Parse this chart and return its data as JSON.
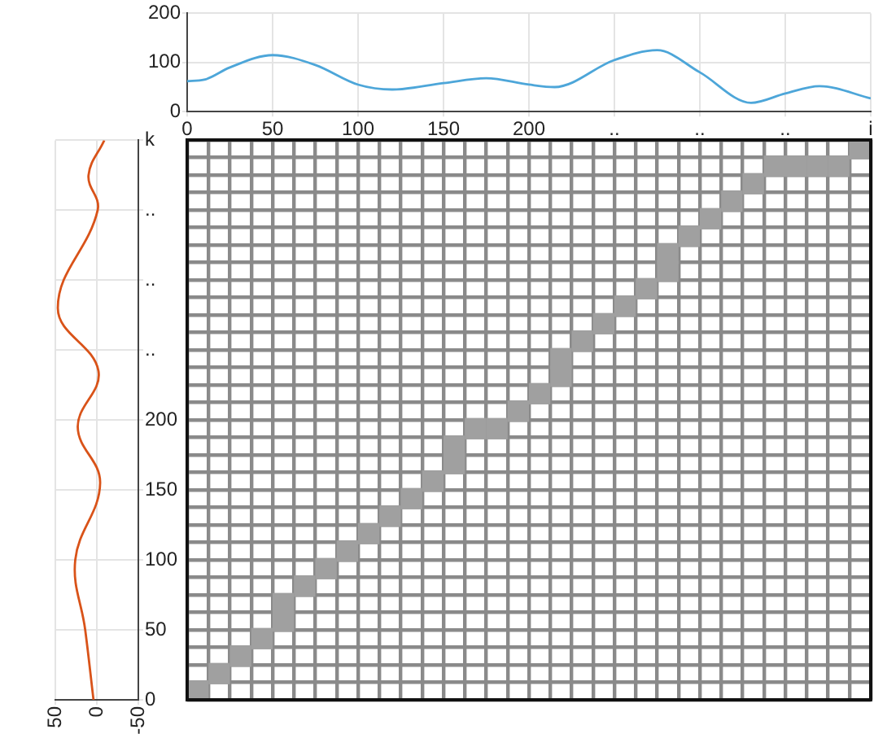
{
  "chart_data": [
    {
      "type": "line",
      "x": [
        0,
        10,
        25,
        50,
        75,
        100,
        120,
        150,
        175,
        200,
        215,
        250,
        275,
        300,
        330,
        350,
        370,
        400
      ],
      "series": [
        {
          "color": "#4da6d9",
          "values": [
            62,
            65,
            90,
            115,
            95,
            55,
            45,
            58,
            68,
            55,
            50,
            105,
            125,
            80,
            18,
            37,
            52,
            27
          ]
        }
      ],
      "xlim": [
        0,
        400
      ],
      "xticks": [
        0,
        50,
        100,
        150,
        200,
        {
          "value": 250,
          "label": ".."
        },
        {
          "value": 300,
          "label": ".."
        },
        {
          "value": 350,
          "label": ".."
        },
        {
          "value": 400,
          "label": "i"
        }
      ],
      "ylim": [
        0,
        200
      ],
      "yticks": [
        0,
        100,
        200
      ],
      "grid": true
    },
    {
      "type": "line",
      "orientation": "horizontal",
      "x": [
        0,
        50,
        100,
        155,
        195,
        235,
        280,
        350,
        375,
        400
      ],
      "series": [
        {
          "color": "#d95319",
          "values": [
            4,
            14,
            26,
            -4,
            23,
            -2,
            47,
            -1,
            10,
            -9
          ]
        }
      ],
      "xlim": [
        50,
        -50
      ],
      "xticks": [
        50,
        0,
        -50
      ],
      "ylim": [
        0,
        400
      ],
      "yticks": [
        0,
        50,
        100,
        150,
        200,
        {
          "value": 250,
          "label": ".."
        },
        {
          "value": 300,
          "label": ".."
        },
        {
          "value": 350,
          "label": ".."
        },
        {
          "value": 400,
          "label": "k"
        }
      ],
      "grid": true
    },
    {
      "type": "scatter",
      "marker": "square",
      "tick_labels": false,
      "grid": true,
      "x": [
        6.25,
        18.75,
        31.25,
        43.75,
        56.25,
        56.25,
        68.75,
        81.25,
        93.75,
        106.25,
        118.75,
        131.25,
        143.75,
        156.25,
        156.25,
        168.75,
        181.25,
        193.75,
        206.25,
        218.75,
        218.75,
        231.25,
        243.75,
        256.25,
        268.75,
        281.25,
        281.25,
        293.75,
        306.25,
        318.75,
        331.25,
        343.75,
        356.25,
        368.75,
        381.25,
        393.75
      ],
      "series": [
        {
          "color": "#a0a0a0",
          "values": [
            6.25,
            18.75,
            31.25,
            43.75,
            56.25,
            68.75,
            81.25,
            93.75,
            106.25,
            118.75,
            131.25,
            143.75,
            156.25,
            168.75,
            181.25,
            193.75,
            193.75,
            206.25,
            218.75,
            231.25,
            243.75,
            256.25,
            268.75,
            281.25,
            293.75,
            306.25,
            318.75,
            331.25,
            343.75,
            356.25,
            368.75,
            381.25,
            381.25,
            381.25,
            381.25,
            393.75
          ]
        }
      ],
      "xlim": [
        0,
        400
      ],
      "ylim": [
        0,
        400
      ],
      "xticks": [
        {
          "value": 0,
          "label": null
        },
        {
          "value": 12.5,
          "label": null
        },
        {
          "value": 25,
          "label": null
        },
        {
          "value": 37.5,
          "label": null
        },
        {
          "value": 50,
          "label": null
        },
        {
          "value": 62.5,
          "label": null
        },
        {
          "value": 75,
          "label": null
        },
        {
          "value": 87.5,
          "label": null
        },
        {
          "value": 100,
          "label": null
        },
        {
          "value": 112.5,
          "label": null
        },
        {
          "value": 125,
          "label": null
        },
        {
          "value": 137.5,
          "label": null
        },
        {
          "value": 150,
          "label": null
        },
        {
          "value": 162.5,
          "label": null
        },
        {
          "value": 175,
          "label": null
        },
        {
          "value": 187.5,
          "label": null
        },
        {
          "value": 200,
          "label": null
        },
        {
          "value": 212.5,
          "label": null
        },
        {
          "value": 225,
          "label": null
        },
        {
          "value": 237.5,
          "label": null
        },
        {
          "value": 250,
          "label": null
        },
        {
          "value": 262.5,
          "label": null
        },
        {
          "value": 275,
          "label": null
        },
        {
          "value": 287.5,
          "label": null
        },
        {
          "value": 300,
          "label": null
        },
        {
          "value": 312.5,
          "label": null
        },
        {
          "value": 325,
          "label": null
        },
        {
          "value": 337.5,
          "label": null
        },
        {
          "value": 350,
          "label": null
        },
        {
          "value": 362.5,
          "label": null
        },
        {
          "value": 375,
          "label": null
        },
        {
          "value": 387.5,
          "label": null
        },
        {
          "value": 400,
          "label": null
        }
      ],
      "yticks": [
        {
          "value": 0,
          "label": null
        },
        {
          "value": 12.5,
          "label": null
        },
        {
          "value": 25,
          "label": null
        },
        {
          "value": 37.5,
          "label": null
        },
        {
          "value": 50,
          "label": null
        },
        {
          "value": 62.5,
          "label": null
        },
        {
          "value": 75,
          "label": null
        },
        {
          "value": 87.5,
          "label": null
        },
        {
          "value": 100,
          "label": null
        },
        {
          "value": 112.5,
          "label": null
        },
        {
          "value": 125,
          "label": null
        },
        {
          "value": 137.5,
          "label": null
        },
        {
          "value": 150,
          "label": null
        },
        {
          "value": 162.5,
          "label": null
        },
        {
          "value": 175,
          "label": null
        },
        {
          "value": 187.5,
          "label": null
        },
        {
          "value": 200,
          "label": null
        },
        {
          "value": 212.5,
          "label": null
        },
        {
          "value": 225,
          "label": null
        },
        {
          "value": 237.5,
          "label": null
        },
        {
          "value": 250,
          "label": null
        },
        {
          "value": 262.5,
          "label": null
        },
        {
          "value": 275,
          "label": null
        },
        {
          "value": 287.5,
          "label": null
        },
        {
          "value": 300,
          "label": null
        },
        {
          "value": 312.5,
          "label": null
        },
        {
          "value": 325,
          "label": null
        },
        {
          "value": 337.5,
          "label": null
        },
        {
          "value": 350,
          "label": null
        },
        {
          "value": 362.5,
          "label": null
        },
        {
          "value": 375,
          "label": null
        },
        {
          "value": 387.5,
          "label": null
        },
        {
          "value": 400,
          "label": null
        }
      ]
    }
  ]
}
